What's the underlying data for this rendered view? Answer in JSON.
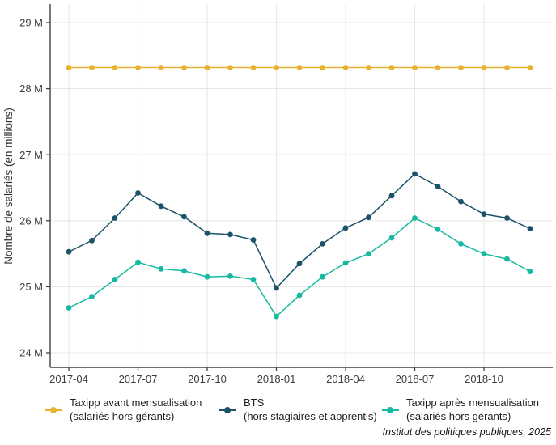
{
  "figure": {
    "caption": "Institut des politiques publiques, 2025"
  },
  "legend": {
    "items": [
      {
        "id": "taxipp-avant",
        "line1": "Taxipp avant mensualisation",
        "line2": "(salariés hors gérants)",
        "color": "#e8b330"
      },
      {
        "id": "bts",
        "line1": "BTS",
        "line2": "(hors stagiaires et apprentis)",
        "color": "#1b5269"
      },
      {
        "id": "taxipp-apres",
        "line1": "Taxipp après mensualisation",
        "line2": "(salariés hors gérants)",
        "color": "#17b9a1"
      }
    ]
  },
  "chart_data": {
    "type": "line",
    "title": "",
    "xlabel": "",
    "ylabel": "Nombre de salariés (en millions)",
    "caption": "Institut des politiques publiques, 2025",
    "grid": true,
    "legend_position": "bottom",
    "ylim": [
      23.78,
      29.28
    ],
    "y_ticks": [
      24,
      25,
      26,
      27,
      28,
      29
    ],
    "y_tick_labels": [
      "24 M",
      "25 M",
      "26 M",
      "27 M",
      "28 M",
      "29 M"
    ],
    "x": [
      "2017-04",
      "2017-05",
      "2017-06",
      "2017-07",
      "2017-08",
      "2017-09",
      "2017-10",
      "2017-11",
      "2017-12",
      "2018-01",
      "2018-02",
      "2018-03",
      "2018-04",
      "2018-05",
      "2018-06",
      "2018-07",
      "2018-08",
      "2018-09",
      "2018-10",
      "2018-11",
      "2018-12"
    ],
    "x_tick_labels": [
      "2017-04",
      "2017-07",
      "2017-10",
      "2018-01",
      "2018-04",
      "2018-07",
      "2018-10"
    ],
    "series": [
      {
        "id": "taxipp_avant",
        "name": "Taxipp avant mensualisation (salariés hors gérants)",
        "color": "#e8b330",
        "values": [
          28.32,
          28.32,
          28.32,
          28.32,
          28.32,
          28.32,
          28.32,
          28.32,
          28.32,
          28.32,
          28.32,
          28.32,
          28.32,
          28.32,
          28.32,
          28.32,
          28.32,
          28.32,
          28.32,
          28.32,
          28.32
        ]
      },
      {
        "id": "bts",
        "name": "BTS (hors stagiaires et apprentis)",
        "color": "#1b5269",
        "values": [
          25.53,
          25.7,
          26.04,
          26.42,
          26.22,
          26.06,
          25.81,
          25.79,
          25.71,
          24.98,
          25.35,
          25.65,
          25.89,
          26.05,
          26.38,
          26.71,
          26.52,
          26.29,
          26.1,
          26.04,
          25.88
        ]
      },
      {
        "id": "taxipp_apres",
        "name": "Taxipp après mensualisation (salariés hors gérants)",
        "color": "#17b9a1",
        "values": [
          24.68,
          24.85,
          25.11,
          25.37,
          25.27,
          25.24,
          25.15,
          25.16,
          25.11,
          24.55,
          24.87,
          25.15,
          25.36,
          25.5,
          25.74,
          26.04,
          25.87,
          25.65,
          25.5,
          25.42,
          25.23
        ]
      }
    ]
  }
}
